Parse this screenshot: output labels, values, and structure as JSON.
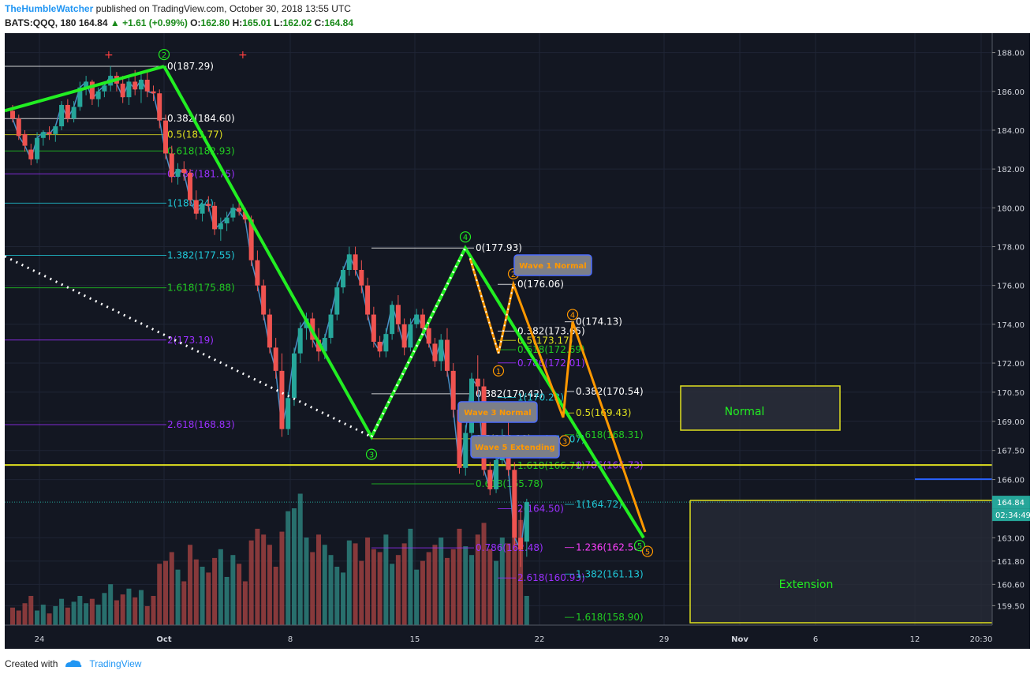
{
  "header": {
    "author": "TheHumbleWatcher",
    "published": "published on TradingView.com, October 30, 2018 13:55 UTC",
    "symbol": "BATS:QQQ, 180",
    "last": "164.84",
    "change": "+1.61 (+0.99%)",
    "o_label": "O:",
    "o": "162.80",
    "h_label": "H:",
    "h": "165.01",
    "l_label": "L:",
    "l": "162.02",
    "c_label": "C:",
    "c": "164.84"
  },
  "footer": {
    "created": "Created with",
    "brand": "TradingView"
  },
  "colors": {
    "bg": "#131722",
    "bull": "#26a69a",
    "bear": "#ef5350",
    "wave": "#22ee22",
    "orange": "#ff9800",
    "yellow": "#e0e020",
    "price_tag": "#26a69a"
  },
  "chart_data": {
    "type": "candlestick",
    "y_axis": {
      "min": 158.5,
      "max": 189,
      "ticks": [
        "188.00",
        "186.00",
        "184.00",
        "182.00",
        "180.00",
        "178.00",
        "176.00",
        "174.00",
        "172.00",
        "170.50",
        "169.00",
        "167.50",
        "166.00",
        "163.00",
        "161.80",
        "160.60",
        "159.50"
      ]
    },
    "x_axis": {
      "ticks": [
        "24",
        "Oct",
        "8",
        "15",
        "22",
        "29",
        "Nov",
        "6",
        "12",
        "20:30"
      ]
    },
    "last_price": "164.84",
    "countdown": "02:34:49",
    "candles": [
      [
        185,
        185.3,
        184.4,
        184.6
      ],
      [
        184.6,
        184.8,
        183.5,
        183.7
      ],
      [
        183.8,
        184,
        182.9,
        183.2
      ],
      [
        183,
        183.3,
        182.2,
        182.5
      ],
      [
        182.5,
        183.9,
        182.3,
        183.6
      ],
      [
        183.6,
        184,
        183.2,
        183.9
      ],
      [
        183.9,
        184.2,
        183.5,
        183.8
      ],
      [
        183.8,
        184.3,
        183.4,
        184.2
      ],
      [
        184.2,
        185.5,
        184,
        185.3
      ],
      [
        185.3,
        185.6,
        184.4,
        184.6
      ],
      [
        184.6,
        185.5,
        184.4,
        185.2
      ],
      [
        185.2,
        186.5,
        185,
        186.2
      ],
      [
        186.2,
        186.8,
        185.8,
        186.5
      ],
      [
        186.5,
        186.6,
        185.3,
        185.6
      ],
      [
        185.6,
        186.2,
        185.2,
        186
      ],
      [
        186,
        186.5,
        185.7,
        186.3
      ],
      [
        186.3,
        187.3,
        186,
        186.8
      ],
      [
        186.8,
        187,
        186,
        186.4
      ],
      [
        186.4,
        186.8,
        185.4,
        185.7
      ],
      [
        185.7,
        186.7,
        185.3,
        186.5
      ],
      [
        186.5,
        187.1,
        185.8,
        186.1
      ],
      [
        186.1,
        186.9,
        185.4,
        186.6
      ],
      [
        186.6,
        187,
        185.7,
        186
      ],
      [
        186,
        186.3,
        185.5,
        185.9
      ],
      [
        185.9,
        186.1,
        184.1,
        184.5
      ],
      [
        184.5,
        184.8,
        182.5,
        182.8
      ],
      [
        182.8,
        183.2,
        181.3,
        181.6
      ],
      [
        181.6,
        182.3,
        181.2,
        182
      ],
      [
        182,
        182.4,
        181.4,
        181.8
      ],
      [
        181.8,
        182,
        180.1,
        180.4
      ],
      [
        180.4,
        180.9,
        179.4,
        179.7
      ],
      [
        179.7,
        180.4,
        179.3,
        180.2
      ],
      [
        180.2,
        180.6,
        179.8,
        180.1
      ],
      [
        180.1,
        180.3,
        178.6,
        178.9
      ],
      [
        178.9,
        179.5,
        178.3,
        179.2
      ],
      [
        179.2,
        179.8,
        178.8,
        179.5
      ],
      [
        179.5,
        180.2,
        179.3,
        180
      ],
      [
        180,
        180.4,
        179.6,
        179.8
      ],
      [
        179.8,
        180,
        179.2,
        179.4
      ],
      [
        179.4,
        179.6,
        177,
        177.3
      ],
      [
        177.3,
        177.8,
        175.7,
        176
      ],
      [
        176,
        176.3,
        174.2,
        174.5
      ],
      [
        174.5,
        174.8,
        172.5,
        172.8
      ],
      [
        172.8,
        173.3,
        171.2,
        171.6
      ],
      [
        171.6,
        172.5,
        168.2,
        168.6
      ],
      [
        168.6,
        170.5,
        168.3,
        170.2
      ],
      [
        170.2,
        172.8,
        169.8,
        172.5
      ],
      [
        172.5,
        174.1,
        172,
        173.8
      ],
      [
        173.8,
        174.6,
        173.2,
        174.3
      ],
      [
        174.3,
        174.6,
        172.8,
        173.2
      ],
      [
        173.2,
        173.8,
        172.1,
        172.6
      ],
      [
        172.6,
        173.5,
        172.2,
        173.3
      ],
      [
        173.3,
        174.8,
        173,
        174.5
      ],
      [
        174.5,
        176.2,
        174.2,
        175.9
      ],
      [
        175.9,
        177,
        175.6,
        176.8
      ],
      [
        176.8,
        178,
        176.5,
        177.6
      ],
      [
        177.6,
        178,
        176.5,
        176.8
      ],
      [
        176.8,
        177.3,
        175.6,
        176
      ],
      [
        176,
        176.4,
        174.2,
        174.5
      ],
      [
        174.5,
        174.9,
        172.8,
        173.1
      ],
      [
        173.1,
        173.4,
        172.3,
        172.6
      ],
      [
        172.6,
        173.8,
        172.3,
        173.5
      ],
      [
        173.5,
        175.2,
        173.2,
        175
      ],
      [
        175,
        175.5,
        173.6,
        174
      ],
      [
        174,
        174.3,
        172.4,
        172.8
      ],
      [
        172.8,
        174.3,
        172.6,
        174
      ],
      [
        174,
        174.8,
        173.8,
        174.5
      ],
      [
        174.5,
        174.8,
        173.5,
        173.8
      ],
      [
        173.8,
        174.1,
        172.8,
        173
      ],
      [
        173,
        173.3,
        171.8,
        172.1
      ],
      [
        172.1,
        173.5,
        171.6,
        173.2
      ],
      [
        173.2,
        173.8,
        171.3,
        171.6
      ],
      [
        171.6,
        172,
        169.2,
        169.6
      ],
      [
        169.6,
        170,
        166.3,
        166.6
      ],
      [
        166.6,
        168.8,
        166.2,
        168.4
      ],
      [
        168.4,
        171.5,
        168.1,
        171.2
      ],
      [
        171.2,
        172.4,
        170.4,
        170.8
      ],
      [
        170.8,
        171.2,
        166.2,
        166.5
      ],
      [
        166.5,
        166.9,
        165.2,
        165.5
      ],
      [
        165.5,
        167.3,
        165.3,
        167
      ],
      [
        167,
        168.6,
        166.8,
        167.2
      ],
      [
        167.2,
        170,
        166.2,
        166.5
      ],
      [
        166.5,
        166.9,
        162.6,
        163
      ],
      [
        163,
        164.5,
        161.5,
        162.4
      ],
      [
        162.8,
        165.01,
        162.02,
        164.84
      ]
    ],
    "volumes": [
      0.12,
      0.1,
      0.15,
      0.2,
      0.1,
      0.14,
      0.08,
      0.13,
      0.18,
      0.12,
      0.16,
      0.2,
      0.15,
      0.18,
      0.14,
      0.22,
      0.28,
      0.17,
      0.21,
      0.25,
      0.19,
      0.24,
      0.13,
      0.2,
      0.42,
      0.44,
      0.5,
      0.38,
      0.3,
      0.55,
      0.45,
      0.4,
      0.36,
      0.46,
      0.52,
      0.33,
      0.48,
      0.42,
      0.3,
      0.58,
      0.66,
      0.62,
      0.55,
      0.4,
      0.64,
      0.78,
      0.8,
      0.9,
      0.6,
      0.5,
      0.62,
      0.55,
      0.48,
      0.4,
      0.36,
      0.58,
      0.56,
      0.44,
      0.6,
      0.52,
      0.5,
      0.62,
      0.42,
      0.48,
      0.56,
      0.66,
      0.38,
      0.44,
      0.5,
      0.55,
      0.6,
      0.46,
      0.52,
      0.66,
      0.54,
      0.48,
      0.62,
      0.7,
      0.52,
      0.44,
      0.6,
      0.56,
      0.82,
      0.72,
      0.2
    ],
    "fib_labels_left": [
      {
        "text": "0(187.29)",
        "price": 187.29,
        "color": "#ffffff"
      },
      {
        "text": "0.382(184.60)",
        "price": 184.6,
        "color": "#ffffff"
      },
      {
        "text": "0.5(183.77)",
        "price": 183.77,
        "color": "#e0e020"
      },
      {
        "text": "0.618(182.93)",
        "price": 182.93,
        "color": "#22cc22"
      },
      {
        "text": "0.786(181.75)",
        "price": 181.75,
        "color": "#9b30ff"
      },
      {
        "text": "1(180.24)",
        "price": 180.24,
        "color": "#20c8d8"
      },
      {
        "text": "1.382(177.55)",
        "price": 177.55,
        "color": "#20c8d8"
      },
      {
        "text": "1.618(175.88)",
        "price": 175.88,
        "color": "#22cc22"
      },
      {
        "text": "2(173.19)",
        "price": 173.19,
        "color": "#9b30ff"
      },
      {
        "text": "2.618(168.83)",
        "price": 168.83,
        "color": "#9b30ff"
      }
    ],
    "fib_labels_mid": [
      {
        "text": "0(177.93)",
        "price": 177.93,
        "color": "#ffffff"
      },
      {
        "text": "0.382(170.42)",
        "price": 170.42,
        "color": "#ffffff"
      },
      {
        "text": "0.5(168.10)",
        "price": 168.1,
        "color": "#e0e020"
      },
      {
        "text": "0.618(165.78)",
        "price": 165.78,
        "color": "#22cc22"
      },
      {
        "text": "0.786(162.48)",
        "price": 162.48,
        "color": "#9b30ff"
      }
    ],
    "fib_labels_wave1": [
      {
        "text": "0(176.06)",
        "price": 176.06,
        "color": "#ffffff"
      },
      {
        "text": "0.382(173.65)",
        "price": 173.65,
        "color": "#ffffff"
      },
      {
        "text": "0.5(173.17)",
        "price": 173.17,
        "color": "#e0e020"
      },
      {
        "text": "0.618(172.69)",
        "price": 172.69,
        "color": "#22cc22"
      },
      {
        "text": "0.786(172.01)",
        "price": 172.01,
        "color": "#9b30ff"
      },
      {
        "text": "1(170.23)",
        "price": 170.23,
        "color": "#20c8d8"
      },
      {
        "text": "1.382(168.07)",
        "price": 168.07,
        "color": "#20c8d8"
      },
      {
        "text": "1.618(166.71)",
        "price": 166.71,
        "color": "#22cc22"
      },
      {
        "text": "2(164.50)",
        "price": 164.5,
        "color": "#9b30ff"
      },
      {
        "text": "2.618(160.93)",
        "price": 160.93,
        "color": "#9b30ff"
      }
    ],
    "fib_labels_wave3": [
      {
        "text": "0(174.13)",
        "price": 174.13,
        "color": "#ffffff"
      },
      {
        "text": "0.382(170.54)",
        "price": 170.54,
        "color": "#ffffff"
      },
      {
        "text": "0.5(169.43)",
        "price": 169.43,
        "color": "#e0e020"
      },
      {
        "text": "0.618(168.31)",
        "price": 168.31,
        "color": "#22cc22"
      },
      {
        "text": "0.786(166.73)",
        "price": 166.73,
        "color": "#9b30ff"
      },
      {
        "text": "1(164.72)",
        "price": 164.72,
        "color": "#20c8d8"
      },
      {
        "text": "1.236(162.50)",
        "price": 162.5,
        "color": "#ff40ff"
      },
      {
        "text": "1.382(161.13)",
        "price": 161.13,
        "color": "#20c8d8"
      },
      {
        "text": "1.618(158.90)",
        "price": 158.9,
        "color": "#22cc22"
      }
    ],
    "wave_labels": [
      "2",
      "4",
      "3",
      "1",
      "2",
      "3",
      "4",
      "5",
      "5"
    ],
    "callouts": [
      "Wave 1 Normal",
      "Wave 3 Normal",
      "Wave 5 Extending"
    ],
    "zones": [
      "Normal",
      "Extension"
    ],
    "horizontal_line_price": 166.75
  }
}
